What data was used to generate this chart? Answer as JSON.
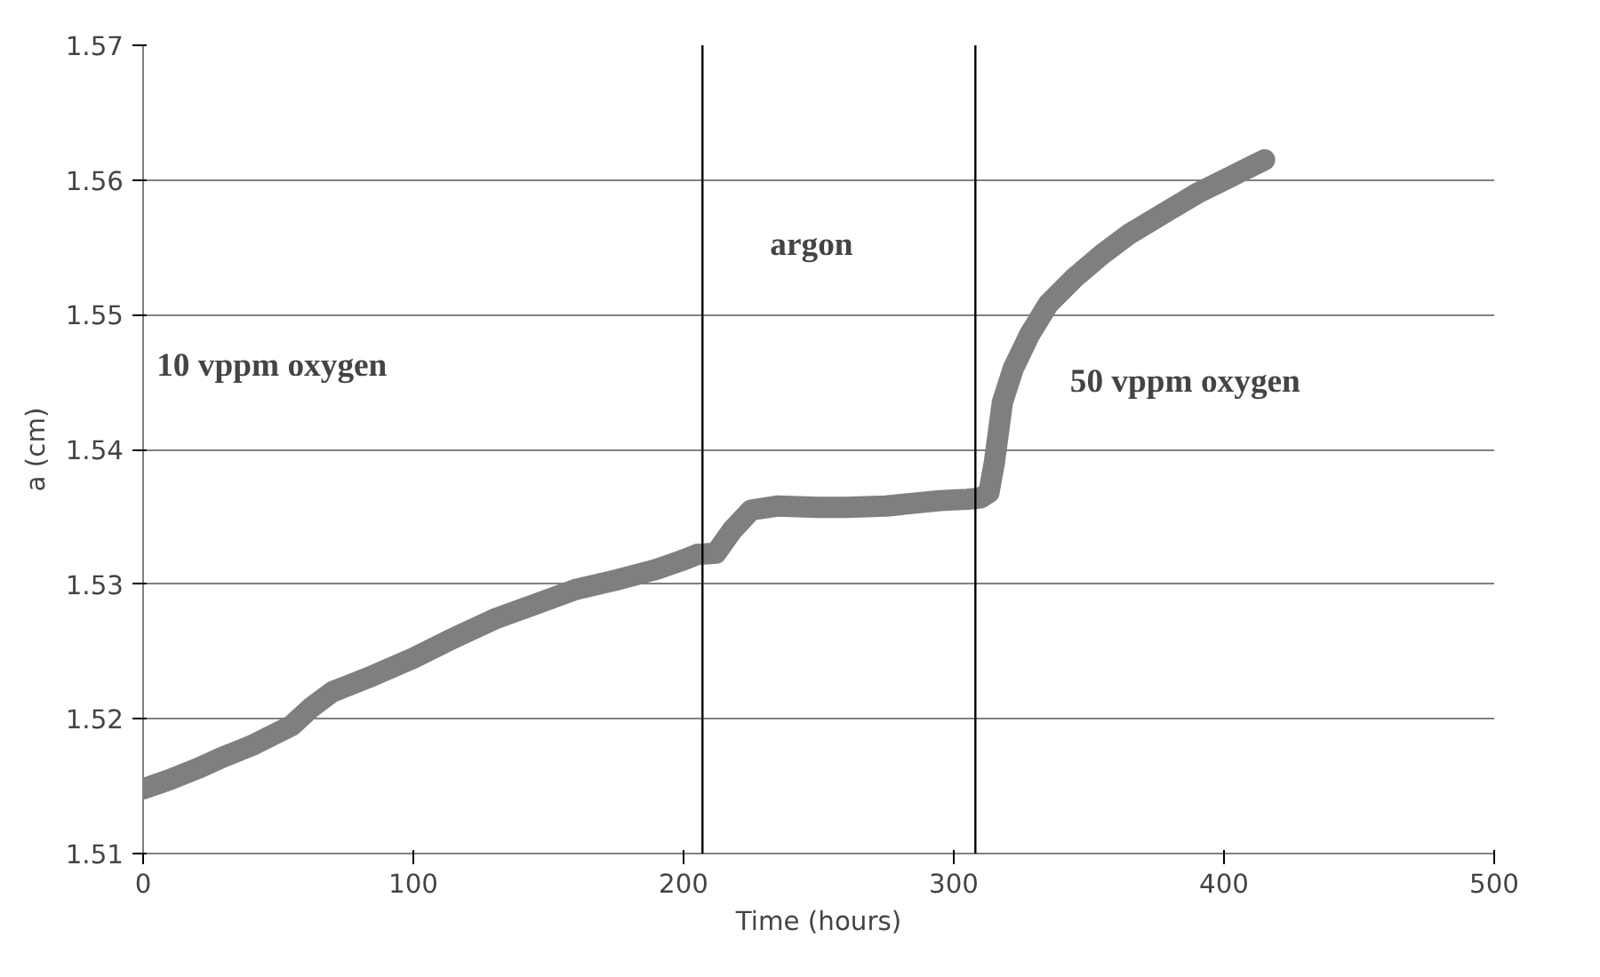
{
  "chart_data": {
    "type": "line",
    "xlabel": "Time (hours)",
    "ylabel": "a (cm)",
    "x": [
      0,
      10,
      20,
      30,
      40,
      50,
      55,
      62,
      70,
      85,
      100,
      115,
      130,
      145,
      160,
      175,
      190,
      200,
      205,
      212,
      218,
      225,
      235,
      250,
      260,
      275,
      285,
      295,
      305,
      310,
      313,
      315,
      318,
      322,
      328,
      335,
      345,
      355,
      365,
      380,
      390,
      400,
      410,
      415
    ],
    "series": [
      {
        "color": "#7f7f7f",
        "values": [
          1.5148,
          1.5155,
          1.5163,
          1.5172,
          1.518,
          1.519,
          1.5195,
          1.5208,
          1.522,
          1.5232,
          1.5245,
          1.526,
          1.5274,
          1.5285,
          1.5296,
          1.5303,
          1.5311,
          1.5318,
          1.5322,
          1.5323,
          1.534,
          1.5355,
          1.5358,
          1.5357,
          1.5357,
          1.5358,
          1.536,
          1.5362,
          1.5363,
          1.5364,
          1.5368,
          1.539,
          1.5435,
          1.546,
          1.5485,
          1.5508,
          1.5528,
          1.5545,
          1.556,
          1.5578,
          1.559,
          1.56,
          1.561,
          1.5615
        ]
      }
    ],
    "xlim": [
      0,
      500
    ],
    "xticks": [
      0,
      100,
      200,
      300,
      400,
      500
    ],
    "ylim": [
      1.51,
      1.57
    ],
    "yticks": [
      1.51,
      1.52,
      1.53,
      1.54,
      1.55,
      1.56,
      1.57
    ],
    "grid": "y",
    "ref_lines": [
      {
        "axis": "x",
        "value": 207,
        "color": "#000000"
      },
      {
        "axis": "x",
        "value": 308,
        "color": "#000000"
      }
    ],
    "annotations": [
      "10 vppm oxygen",
      "argon",
      "50 vppm oxygen"
    ]
  }
}
